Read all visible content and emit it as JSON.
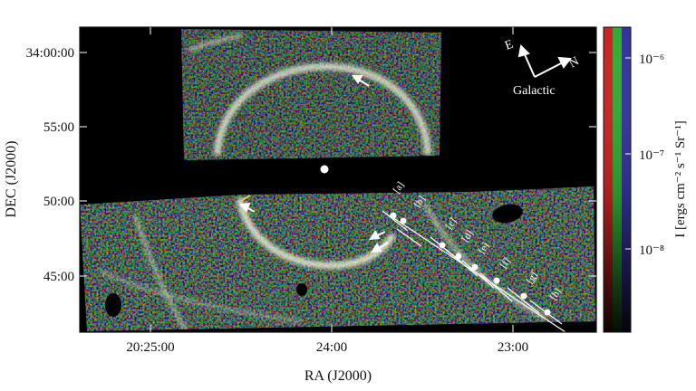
{
  "figure": {
    "xlabel": "RA (J2000)",
    "ylabel": "DEC (J2000)",
    "x_ticks": [
      "20:25:00",
      "24:00",
      "23:00"
    ],
    "y_ticks": [
      "34:00:00",
      "55:00",
      "50:00",
      "45:00"
    ],
    "colorbar": {
      "label": "I [ergs cm⁻² s⁻¹ Sr⁻¹]",
      "ticks": [
        "10⁻⁶",
        "10⁻⁷",
        "10⁻⁸"
      ],
      "channel_colors": [
        "#cc2222",
        "#33aa33",
        "#333399"
      ]
    },
    "compass": {
      "east": "E",
      "north": "N",
      "frame": "Galactic"
    },
    "point_labels": [
      "[a]",
      "[b]",
      "[c]",
      "[d]",
      "[e]",
      "[f]",
      "[g]",
      "[h]"
    ]
  }
}
